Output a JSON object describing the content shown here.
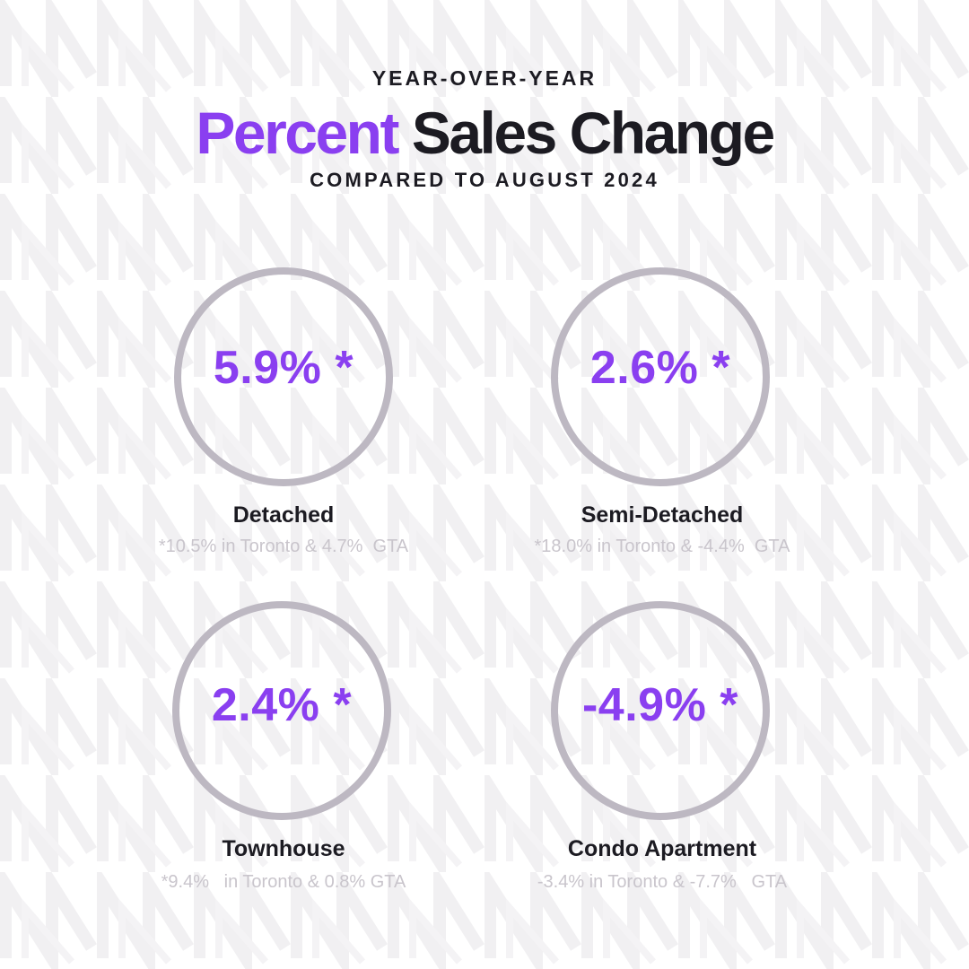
{
  "header": {
    "eyebrow": "YEAR-OVER-YEAR",
    "title_accent": "Percent",
    "title_rest": "Sales Change",
    "subtitle": "COMPARED TO AUGUST 2024"
  },
  "cards": [
    {
      "value": "5.9% *",
      "label": "Detached",
      "note": "*10.5% in Toronto & 4.7%  GTA"
    },
    {
      "value": "2.6% *",
      "label": "Semi-Detached",
      "note": "*18.0% in Toronto & -4.4%  GTA"
    },
    {
      "value": "2.4%  *",
      "label": "Townhouse",
      "note": "*9.4%   in Toronto & 0.8% GTA"
    },
    {
      "value": "-4.9% *",
      "label": "Condo Apartment",
      "note": "-3.4% in Toronto & -7.7%   GTA"
    }
  ],
  "colors": {
    "accent": "#8a3ff0",
    "text": "#1c1b22",
    "ring": "#bdb8c2",
    "note": "#c9c5cc",
    "pattern": "#f1f0f2"
  }
}
